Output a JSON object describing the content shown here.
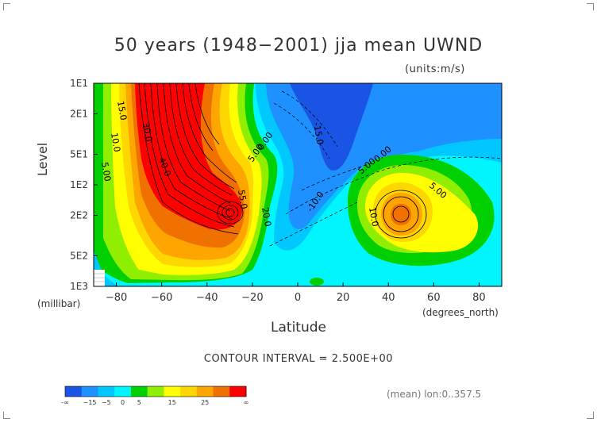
{
  "chart_data": {
    "type": "contour",
    "title": "50 years (1948−2001) jja mean UWND",
    "units": "(units:m/s)",
    "xlabel": "Latitude",
    "ylabel": "Level",
    "x_unit": "(degrees_north)",
    "y_unit": "(millibar)",
    "xlim": [
      -90,
      90
    ],
    "x_ticks": [
      -80,
      -60,
      -40,
      -20,
      0,
      20,
      40,
      60,
      80
    ],
    "y_ticks": [
      "1E1",
      "2E1",
      "5E1",
      "1E2",
      "2E2",
      "5E2",
      "1E3"
    ],
    "y_tick_values": [
      10,
      20,
      50,
      100,
      200,
      500,
      1000
    ],
    "contour_interval": 2.5,
    "contour_interval_label": "CONTOUR INTERVAL = 2.500E+00",
    "contour_labels": [
      "15.0",
      "10.0",
      "5.00",
      "5.00",
      "0.00",
      "-10.0",
      "-15.0",
      "5.00",
      "0.00",
      "10.0",
      "5.00",
      "30.0",
      "40.0",
      "55.0",
      "20.0"
    ],
    "colorbar": {
      "ticks": [
        "-∞",
        "−15",
        "−5",
        "0",
        "5",
        "15",
        "25",
        "∞"
      ],
      "colors": [
        "#1a54e4",
        "#1e90ff",
        "#00c8ff",
        "#00f5ff",
        "#00d000",
        "#90ee00",
        "#ffff00",
        "#ffd700",
        "#ffa500",
        "#f07000",
        "#ff0000"
      ]
    },
    "annotation": "(mean) lon:0..357.5"
  }
}
